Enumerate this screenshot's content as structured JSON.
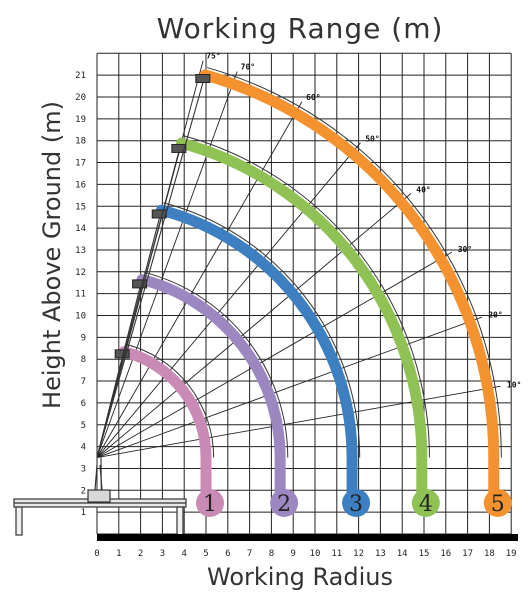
{
  "title": "Working Range (m)",
  "xlabel": "Working Radius",
  "ylabel": "Height Above Ground (m)",
  "x_ticks": [
    "0",
    "1",
    "2",
    "3",
    "4",
    "5",
    "6",
    "7",
    "8",
    "9",
    "10",
    "11",
    "12",
    "13",
    "14",
    "15",
    "16",
    "17",
    "18",
    "19"
  ],
  "y_ticks": [
    "1",
    "2",
    "3",
    "4",
    "5",
    "6",
    "7",
    "8",
    "9",
    "10",
    "11",
    "12",
    "13",
    "14",
    "15",
    "16",
    "17",
    "18",
    "19",
    "20",
    "21"
  ],
  "angle_labels": [
    "75°",
    "70°",
    "60°",
    "50°",
    "40°",
    "30°",
    "20°",
    "10°"
  ],
  "angles_deg": [
    75,
    70,
    60,
    50,
    40,
    30,
    20,
    10
  ],
  "pivot": {
    "x": 0,
    "y": 3.5
  },
  "booms": [
    {
      "label": "1",
      "color": "#c98bb6",
      "max_radius": 5.0,
      "tip": [
        1.2,
        8.2
      ]
    },
    {
      "label": "2",
      "color": "#9c87c0",
      "max_radius": 8.4,
      "tip": [
        2.0,
        11.4
      ]
    },
    {
      "label": "3",
      "color": "#3d7fc0",
      "max_radius": 11.7,
      "tip": [
        2.9,
        14.6
      ]
    },
    {
      "label": "4",
      "color": "#8fc154",
      "max_radius": 14.9,
      "tip": [
        3.8,
        17.6
      ]
    },
    {
      "label": "5",
      "color": "#f59230",
      "max_radius": 18.2,
      "tip": [
        4.9,
        20.8
      ]
    }
  ]
}
